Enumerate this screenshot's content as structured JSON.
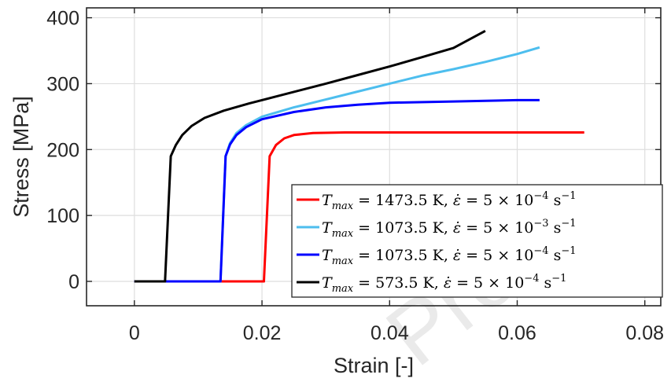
{
  "chart_data": {
    "type": "line",
    "title": "",
    "xlabel": "Strain [-]",
    "ylabel": "Stress [MPa]",
    "xlim": [
      -0.0075,
      0.0825
    ],
    "ylim": [
      -37,
      415
    ],
    "xticks": [
      0,
      0.02,
      0.04,
      0.06,
      0.08
    ],
    "xtick_labels": [
      "0",
      "0.02",
      "0.04",
      "0.06",
      "0.08"
    ],
    "yticks": [
      0,
      100,
      200,
      300,
      400
    ],
    "ytick_labels": [
      "0",
      "100",
      "200",
      "300",
      "400"
    ],
    "grid": true,
    "legend_position": "bottom-right",
    "series": [
      {
        "name": "T_max = 1473.5 K, ε̇ = 5 × 10^-4 s^-1",
        "legend": {
          "base": "= 1473.5 K,",
          "rate_mant": "= 5 × 10",
          "rate_exp": "−4",
          "unit_exp": "−1"
        },
        "color": "#ff0000",
        "x": [
          0.0,
          0.0203,
          0.0212,
          0.0222,
          0.0235,
          0.025,
          0.028,
          0.033,
          0.045,
          0.06,
          0.0705
        ],
        "y": [
          0,
          0,
          190,
          207,
          217,
          222,
          225,
          226,
          226,
          226,
          226
        ]
      },
      {
        "name": "T_max = 1073.5 K, ε̇ = 5 × 10^-3 s^-1",
        "legend": {
          "base": "= 1073.5 K,",
          "rate_mant": "= 5 × 10",
          "rate_exp": "−3",
          "unit_exp": "−1"
        },
        "color": "#4dbeee",
        "x": [
          0.0,
          0.0135,
          0.0143,
          0.015,
          0.016,
          0.0175,
          0.02,
          0.025,
          0.03,
          0.035,
          0.04,
          0.045,
          0.05,
          0.055,
          0.06,
          0.0635
        ],
        "y": [
          0,
          0,
          190,
          210,
          225,
          237,
          250,
          264,
          276,
          288,
          300,
          312,
          322,
          333,
          345,
          355
        ]
      },
      {
        "name": "T_max = 1073.5 K, ε̇ = 5 × 10^-4 s^-1",
        "legend": {
          "base": "= 1073.5 K,",
          "rate_mant": "= 5 × 10",
          "rate_exp": "−4",
          "unit_exp": "−1"
        },
        "color": "#0000ff",
        "x": [
          0.0,
          0.0135,
          0.0143,
          0.015,
          0.016,
          0.0175,
          0.02,
          0.025,
          0.03,
          0.035,
          0.04,
          0.05,
          0.06,
          0.0635
        ],
        "y": [
          0,
          0,
          190,
          208,
          222,
          234,
          246,
          257,
          264,
          268,
          271,
          273,
          275,
          275
        ]
      },
      {
        "name": "T_max = 573.5 K, ε̇ = 5 × 10^-4 s^-1",
        "legend": {
          "base": "= 573.5 K,",
          "rate_mant": "= 5 × 10",
          "rate_exp": "−4",
          "unit_exp": "−1"
        },
        "color": "#000000",
        "x": [
          0.0,
          0.0048,
          0.0057,
          0.0065,
          0.0075,
          0.009,
          0.011,
          0.014,
          0.018,
          0.022,
          0.026,
          0.03,
          0.035,
          0.04,
          0.045,
          0.05,
          0.055
        ],
        "y": [
          0,
          0,
          190,
          207,
          222,
          236,
          248,
          259,
          270,
          280,
          290,
          300,
          313,
          326,
          340,
          354,
          380
        ]
      }
    ]
  },
  "watermark_text": "Proof"
}
